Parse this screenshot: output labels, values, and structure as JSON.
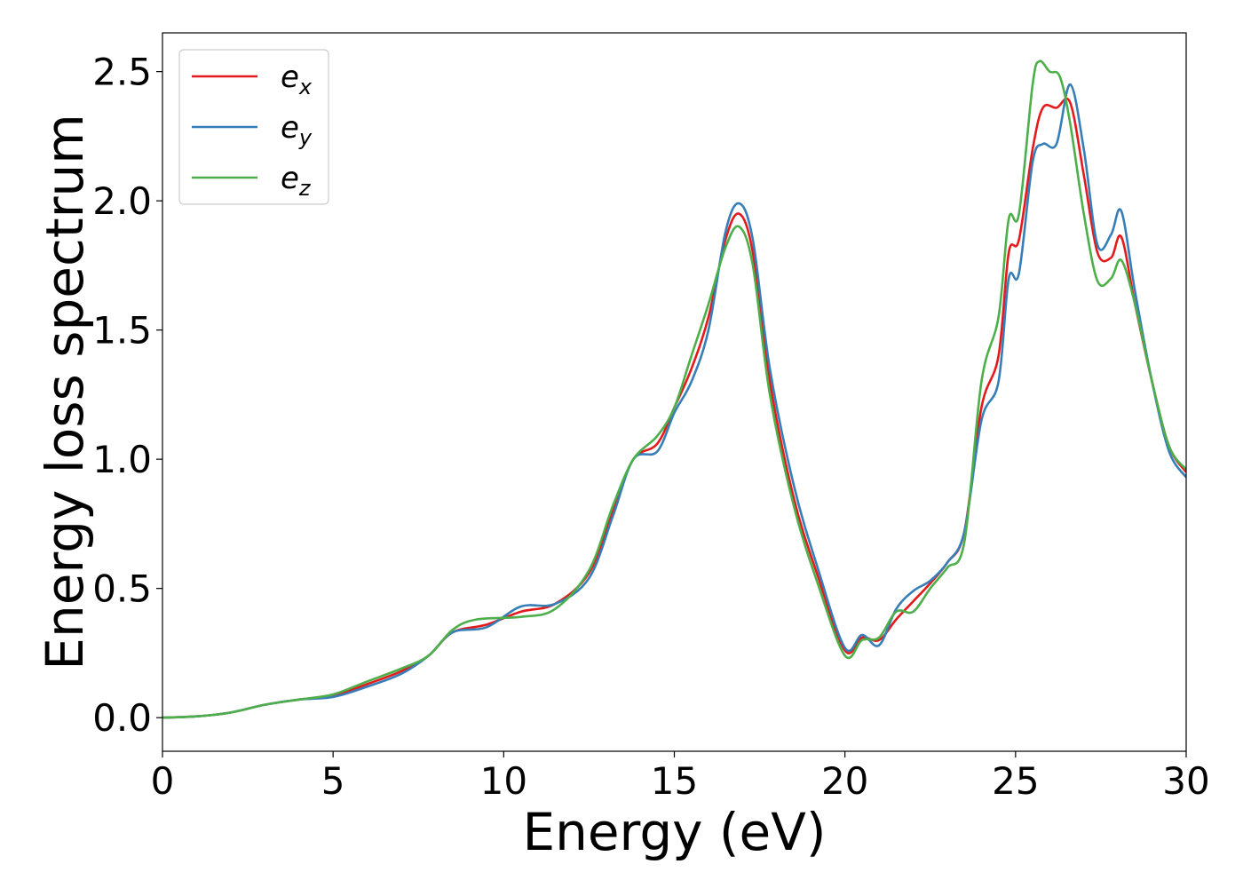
{
  "chart_data": {
    "type": "line",
    "title": "",
    "xlabel": "Energy (eV)",
    "ylabel": "Energy loss spectrum",
    "xlim": [
      0,
      30
    ],
    "ylim": [
      -0.13,
      2.65
    ],
    "xticks": [
      0,
      5,
      10,
      15,
      20,
      25,
      30
    ],
    "xtick_labels": [
      "0",
      "5",
      "10",
      "15",
      "20",
      "25",
      "30"
    ],
    "yticks": [
      0.0,
      0.5,
      1.0,
      1.5,
      2.0,
      2.5
    ],
    "ytick_labels": [
      "0.0",
      "0.5",
      "1.0",
      "1.5",
      "2.0",
      "2.5"
    ],
    "grid": false,
    "legend_position": "top-left",
    "series": [
      {
        "name": "e_x",
        "label_base": "e",
        "label_sub": "x",
        "color": "#e41a1c",
        "points": [
          [
            0,
            0
          ],
          [
            1,
            0.005
          ],
          [
            2,
            0.02
          ],
          [
            3,
            0.05
          ],
          [
            4,
            0.07
          ],
          [
            5,
            0.085
          ],
          [
            6,
            0.13
          ],
          [
            7,
            0.18
          ],
          [
            7.8,
            0.24
          ],
          [
            8.5,
            0.33
          ],
          [
            9.5,
            0.36
          ],
          [
            10.5,
            0.41
          ],
          [
            11.5,
            0.44
          ],
          [
            12.5,
            0.56
          ],
          [
            13.2,
            0.8
          ],
          [
            13.8,
            1.0
          ],
          [
            14.5,
            1.06
          ],
          [
            15,
            1.2
          ],
          [
            15.5,
            1.35
          ],
          [
            16,
            1.55
          ],
          [
            16.5,
            1.85
          ],
          [
            16.9,
            1.95
          ],
          [
            17.3,
            1.8
          ],
          [
            17.8,
            1.3
          ],
          [
            18.5,
            0.85
          ],
          [
            19.2,
            0.55
          ],
          [
            20,
            0.26
          ],
          [
            20.5,
            0.31
          ],
          [
            21,
            0.3
          ],
          [
            21.5,
            0.38
          ],
          [
            22,
            0.45
          ],
          [
            22.5,
            0.52
          ],
          [
            23,
            0.6
          ],
          [
            23.5,
            0.72
          ],
          [
            24,
            1.2
          ],
          [
            24.5,
            1.4
          ],
          [
            24.8,
            1.8
          ],
          [
            25.1,
            1.85
          ],
          [
            25.5,
            2.2
          ],
          [
            25.8,
            2.36
          ],
          [
            26.2,
            2.36
          ],
          [
            26.6,
            2.38
          ],
          [
            27,
            2.1
          ],
          [
            27.4,
            1.8
          ],
          [
            27.8,
            1.78
          ],
          [
            28.1,
            1.86
          ],
          [
            28.5,
            1.6
          ],
          [
            29,
            1.3
          ],
          [
            29.5,
            1.05
          ],
          [
            30,
            0.95
          ]
        ]
      },
      {
        "name": "e_y",
        "label_base": "e",
        "label_sub": "y",
        "color": "#377eb8",
        "points": [
          [
            0,
            0
          ],
          [
            1,
            0.005
          ],
          [
            2,
            0.02
          ],
          [
            3,
            0.05
          ],
          [
            4,
            0.07
          ],
          [
            5,
            0.08
          ],
          [
            6,
            0.12
          ],
          [
            7,
            0.17
          ],
          [
            7.8,
            0.24
          ],
          [
            8.5,
            0.33
          ],
          [
            9.5,
            0.35
          ],
          [
            10.5,
            0.43
          ],
          [
            11.5,
            0.44
          ],
          [
            12.5,
            0.54
          ],
          [
            13.2,
            0.78
          ],
          [
            13.8,
            1.0
          ],
          [
            14.5,
            1.03
          ],
          [
            15,
            1.18
          ],
          [
            15.5,
            1.3
          ],
          [
            16,
            1.5
          ],
          [
            16.5,
            1.88
          ],
          [
            16.9,
            1.99
          ],
          [
            17.3,
            1.85
          ],
          [
            17.8,
            1.35
          ],
          [
            18.5,
            0.9
          ],
          [
            19.2,
            0.58
          ],
          [
            20,
            0.27
          ],
          [
            20.5,
            0.32
          ],
          [
            21,
            0.28
          ],
          [
            21.5,
            0.42
          ],
          [
            22,
            0.49
          ],
          [
            22.5,
            0.53
          ],
          [
            23,
            0.6
          ],
          [
            23.5,
            0.72
          ],
          [
            24,
            1.15
          ],
          [
            24.5,
            1.3
          ],
          [
            24.8,
            1.7
          ],
          [
            25.1,
            1.72
          ],
          [
            25.5,
            2.15
          ],
          [
            25.8,
            2.22
          ],
          [
            26.2,
            2.22
          ],
          [
            26.6,
            2.45
          ],
          [
            27,
            2.2
          ],
          [
            27.4,
            1.83
          ],
          [
            27.8,
            1.87
          ],
          [
            28.1,
            1.96
          ],
          [
            28.5,
            1.65
          ],
          [
            29,
            1.3
          ],
          [
            29.5,
            1.03
          ],
          [
            30,
            0.93
          ]
        ]
      },
      {
        "name": "e_z",
        "label_base": "e",
        "label_sub": "z",
        "color": "#4daf4a",
        "points": [
          [
            0,
            0
          ],
          [
            1,
            0.005
          ],
          [
            2,
            0.02
          ],
          [
            3,
            0.05
          ],
          [
            4,
            0.07
          ],
          [
            5,
            0.09
          ],
          [
            6,
            0.14
          ],
          [
            7,
            0.19
          ],
          [
            7.8,
            0.24
          ],
          [
            8.5,
            0.34
          ],
          [
            9.2,
            0.38
          ],
          [
            10.5,
            0.39
          ],
          [
            11.5,
            0.42
          ],
          [
            12.5,
            0.57
          ],
          [
            13.2,
            0.82
          ],
          [
            13.8,
            1.0
          ],
          [
            14.5,
            1.09
          ],
          [
            15,
            1.2
          ],
          [
            15.5,
            1.4
          ],
          [
            16,
            1.6
          ],
          [
            16.5,
            1.82
          ],
          [
            16.9,
            1.9
          ],
          [
            17.3,
            1.75
          ],
          [
            17.8,
            1.25
          ],
          [
            18.5,
            0.82
          ],
          [
            19.2,
            0.52
          ],
          [
            20,
            0.24
          ],
          [
            20.5,
            0.3
          ],
          [
            21,
            0.31
          ],
          [
            21.5,
            0.41
          ],
          [
            22,
            0.41
          ],
          [
            22.5,
            0.5
          ],
          [
            23,
            0.58
          ],
          [
            23.5,
            0.68
          ],
          [
            24,
            1.3
          ],
          [
            24.5,
            1.55
          ],
          [
            24.8,
            1.93
          ],
          [
            25.1,
            1.95
          ],
          [
            25.5,
            2.45
          ],
          [
            25.7,
            2.54
          ],
          [
            26,
            2.5
          ],
          [
            26.3,
            2.48
          ],
          [
            26.6,
            2.3
          ],
          [
            27,
            1.95
          ],
          [
            27.4,
            1.69
          ],
          [
            27.8,
            1.7
          ],
          [
            28.1,
            1.77
          ],
          [
            28.5,
            1.6
          ],
          [
            29,
            1.3
          ],
          [
            29.5,
            1.05
          ],
          [
            30,
            0.96
          ]
        ]
      }
    ]
  }
}
